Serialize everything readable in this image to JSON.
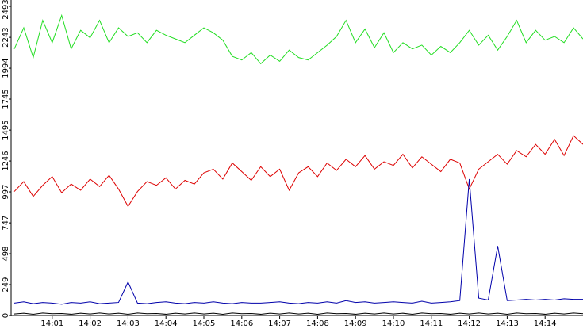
{
  "chart_data": {
    "type": "line",
    "x": [
      0,
      0.25,
      0.5,
      0.75,
      1,
      1.25,
      1.5,
      1.75,
      2,
      2.25,
      2.5,
      2.75,
      3,
      3.25,
      3.5,
      3.75,
      4,
      4.25,
      4.5,
      4.75,
      5,
      5.25,
      5.5,
      5.75,
      6,
      6.25,
      6.5,
      6.75,
      7,
      7.25,
      7.5,
      7.75,
      8,
      8.25,
      8.5,
      8.75,
      9,
      9.25,
      9.5,
      9.75,
      10,
      10.25,
      10.5,
      10.75,
      11,
      11.25,
      11.5,
      11.75,
      12,
      12.25,
      12.5,
      12.75,
      13,
      13.25,
      13.5,
      13.75,
      14,
      14.25,
      14.5,
      14.75,
      15
    ],
    "xlim": [
      0,
      15
    ],
    "xticks": [
      {
        "value": 1,
        "label": "14:01"
      },
      {
        "value": 2,
        "label": "14:02"
      },
      {
        "value": 3,
        "label": "14:03"
      },
      {
        "value": 4,
        "label": "14:04"
      },
      {
        "value": 5,
        "label": "14:05"
      },
      {
        "value": 6,
        "label": "14:06"
      },
      {
        "value": 7,
        "label": "14:07"
      },
      {
        "value": 8,
        "label": "14:08"
      },
      {
        "value": 9,
        "label": "14:09"
      },
      {
        "value": 10,
        "label": "14:10"
      },
      {
        "value": 11,
        "label": "14:11"
      },
      {
        "value": 12,
        "label": "14:12"
      },
      {
        "value": 13,
        "label": "14:13"
      },
      {
        "value": 14,
        "label": "14:14"
      }
    ],
    "ylim": [
      0,
      2493
    ],
    "yticks": [
      0,
      249,
      498,
      747,
      997,
      1246,
      1495,
      1745,
      1994,
      2243,
      2493
    ],
    "series": [
      {
        "color": "#22dd22",
        "values": [
          2150,
          2320,
          2080,
          2380,
          2200,
          2420,
          2150,
          2300,
          2240,
          2380,
          2200,
          2320,
          2250,
          2280,
          2200,
          2300,
          2260,
          2230,
          2200,
          2260,
          2320,
          2280,
          2220,
          2090,
          2060,
          2120,
          2030,
          2100,
          2050,
          2140,
          2080,
          2060,
          2120,
          2180,
          2250,
          2380,
          2200,
          2310,
          2160,
          2280,
          2120,
          2200,
          2150,
          2180,
          2100,
          2170,
          2120,
          2200,
          2300,
          2180,
          2260,
          2140,
          2250,
          2380,
          2200,
          2300,
          2220,
          2250,
          2200,
          2320,
          2230
        ]
      },
      {
        "color": "#dd0000",
        "values": [
          1000,
          1080,
          960,
          1050,
          1120,
          990,
          1060,
          1010,
          1100,
          1040,
          1130,
          1020,
          880,
          1000,
          1080,
          1050,
          1110,
          1020,
          1090,
          1060,
          1150,
          1180,
          1100,
          1230,
          1160,
          1090,
          1200,
          1120,
          1180,
          1010,
          1150,
          1200,
          1120,
          1230,
          1170,
          1260,
          1200,
          1290,
          1180,
          1240,
          1210,
          1300,
          1190,
          1280,
          1220,
          1160,
          1260,
          1230,
          1020,
          1180,
          1240,
          1300,
          1220,
          1330,
          1280,
          1380,
          1300,
          1420,
          1290,
          1450,
          1380
        ]
      },
      {
        "color": "#0000aa",
        "values": [
          100,
          110,
          95,
          105,
          100,
          90,
          105,
          100,
          110,
          95,
          100,
          105,
          270,
          100,
          95,
          105,
          110,
          100,
          95,
          105,
          100,
          110,
          100,
          95,
          105,
          100,
          100,
          105,
          110,
          100,
          95,
          105,
          100,
          110,
          100,
          120,
          105,
          110,
          100,
          105,
          110,
          105,
          100,
          115,
          100,
          105,
          110,
          120,
          1100,
          140,
          125,
          560,
          120,
          125,
          130,
          125,
          130,
          125,
          135,
          130,
          130
        ]
      },
      {
        "color": "#000000",
        "values": [
          12,
          18,
          10,
          20,
          14,
          16,
          10,
          18,
          12,
          20,
          12,
          18,
          10,
          20,
          14,
          16,
          10,
          18,
          12,
          20,
          12,
          18,
          10,
          20,
          14,
          16,
          10,
          18,
          12,
          20,
          12,
          18,
          10,
          20,
          14,
          16,
          10,
          18,
          12,
          20,
          12,
          18,
          10,
          20,
          14,
          16,
          10,
          18,
          12,
          20,
          12,
          18,
          10,
          20,
          14,
          16,
          10,
          18,
          12,
          20,
          14
        ]
      }
    ]
  }
}
